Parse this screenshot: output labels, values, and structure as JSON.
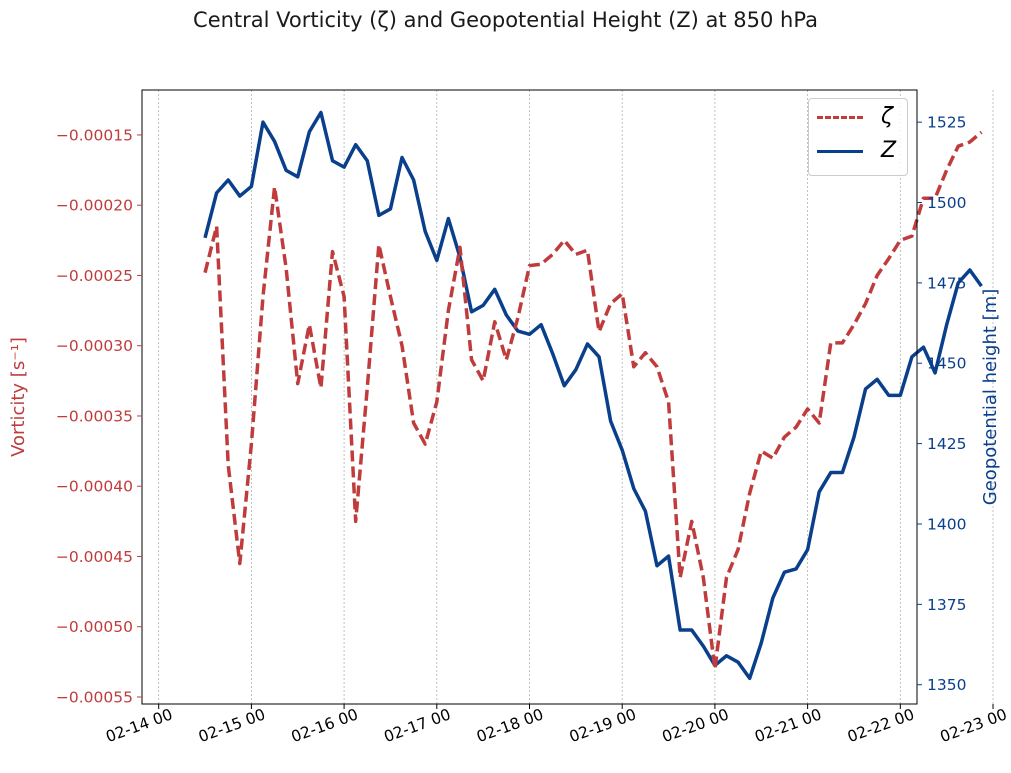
{
  "chart_data": {
    "type": "line",
    "title": "Central Vorticity (ζ) and Geopotential Height (Z) at 850 hPa",
    "ylabel_left": "Vorticity [s⁻¹]",
    "ylabel_right": "Geopotential height [m]",
    "left_axis_color": "#c03c3c",
    "right_axis_color": "#0a3f8c",
    "x_tick_labels": [
      "02-14 00",
      "02-15 00",
      "02-16 00",
      "02-17 00",
      "02-18 00",
      "02-19 00",
      "02-20 00",
      "02-21 00",
      "02-22 00",
      "02-23 00"
    ],
    "x_range_days": [
      -0.18,
      8.18
    ],
    "ylim_left": [
      -0.000555,
      -0.000118
    ],
    "ylim_right": [
      1344,
      1535
    ],
    "left_ticks": [
      -0.00015,
      -0.0002,
      -0.00025,
      -0.0003,
      -0.00035,
      -0.0004,
      -0.00045,
      -0.0005,
      -0.00055
    ],
    "left_tick_labels": [
      "−0.00015",
      "−0.00020",
      "−0.00025",
      "−0.00030",
      "−0.00035",
      "−0.00040",
      "−0.00045",
      "−0.00050",
      "−0.00055"
    ],
    "right_ticks": [
      1350,
      1375,
      1400,
      1425,
      1450,
      1475,
      1500,
      1525
    ],
    "right_tick_labels": [
      "1350",
      "1375",
      "1400",
      "1425",
      "1450",
      "1475",
      "1500",
      "1525"
    ],
    "grid_x": true,
    "legend": {
      "position": "top-right",
      "entries": [
        {
          "label": "ζ",
          "color": "#c03c3c",
          "style": "dashed"
        },
        {
          "label": "Z",
          "color": "#0a3f8c",
          "style": "solid"
        }
      ]
    },
    "series": [
      {
        "name": "ζ",
        "axis": "left",
        "color": "#c03c3c",
        "dash": true,
        "x": [
          "02-14 12:00",
          "02-14 15:00",
          "02-14 18:00",
          "02-14 21:00",
          "02-15 00:00",
          "02-15 03:00",
          "02-15 06:00",
          "02-15 09:00",
          "02-15 12:00",
          "02-15 15:00",
          "02-15 18:00",
          "02-15 21:00",
          "02-16 00:00",
          "02-16 03:00",
          "02-16 06:00",
          "02-16 09:00",
          "02-16 12:00",
          "02-16 15:00",
          "02-16 18:00",
          "02-16 21:00",
          "02-17 00:00",
          "02-17 03:00",
          "02-17 06:00",
          "02-17 09:00",
          "02-17 12:00",
          "02-17 15:00",
          "02-17 18:00",
          "02-17 21:00",
          "02-18 00:00",
          "02-18 03:00",
          "02-18 06:00",
          "02-18 09:00",
          "02-18 12:00",
          "02-18 15:00",
          "02-18 18:00",
          "02-18 21:00",
          "02-19 00:00",
          "02-19 03:00",
          "02-19 06:00",
          "02-19 09:00",
          "02-19 12:00",
          "02-19 15:00",
          "02-19 18:00",
          "02-19 21:00",
          "02-20 00:00",
          "02-20 03:00",
          "02-20 06:00",
          "02-20 09:00",
          "02-20 12:00",
          "02-20 15:00",
          "02-20 18:00",
          "02-20 21:00",
          "02-21 00:00",
          "02-21 03:00",
          "02-21 06:00",
          "02-21 09:00",
          "02-21 12:00",
          "02-21 15:00",
          "02-21 18:00",
          "02-21 21:00",
          "02-22 00:00",
          "02-22 03:00",
          "02-22 06:00",
          "02-22 09:00",
          "02-22 12:00",
          "02-22 15:00",
          "02-22 18:00",
          "02-22 21:00"
        ],
        "values": [
          -0.000248,
          -0.000215,
          -0.000385,
          -0.000455,
          -0.00037,
          -0.000265,
          -0.000187,
          -0.000245,
          -0.000327,
          -0.000285,
          -0.00033,
          -0.000233,
          -0.000265,
          -0.000425,
          -0.00033,
          -0.000228,
          -0.000265,
          -0.0003,
          -0.000355,
          -0.00037,
          -0.00034,
          -0.000275,
          -0.00023,
          -0.00031,
          -0.000325,
          -0.000283,
          -0.00031,
          -0.00028,
          -0.000243,
          -0.000242,
          -0.000235,
          -0.000225,
          -0.000235,
          -0.000232,
          -0.00029,
          -0.00027,
          -0.000263,
          -0.000315,
          -0.000305,
          -0.000315,
          -0.00034,
          -0.000465,
          -0.000425,
          -0.000465,
          -0.00053,
          -0.000465,
          -0.000445,
          -0.000405,
          -0.000375,
          -0.00038,
          -0.000365,
          -0.000358,
          -0.000345,
          -0.000355,
          -0.000298,
          -0.000298,
          -0.000285,
          -0.00027,
          -0.00025,
          -0.000238,
          -0.000225,
          -0.000222,
          -0.000195,
          -0.000195,
          -0.000175,
          -0.000158,
          -0.000155,
          -0.000148
        ]
      },
      {
        "name": "Z",
        "axis": "right",
        "color": "#0a3f8c",
        "dash": false,
        "x": [
          "02-14 12:00",
          "02-14 15:00",
          "02-14 18:00",
          "02-14 21:00",
          "02-15 00:00",
          "02-15 03:00",
          "02-15 06:00",
          "02-15 09:00",
          "02-15 12:00",
          "02-15 15:00",
          "02-15 18:00",
          "02-15 21:00",
          "02-16 00:00",
          "02-16 03:00",
          "02-16 06:00",
          "02-16 09:00",
          "02-16 12:00",
          "02-16 15:00",
          "02-16 18:00",
          "02-16 21:00",
          "02-17 00:00",
          "02-17 03:00",
          "02-17 06:00",
          "02-17 09:00",
          "02-17 12:00",
          "02-17 15:00",
          "02-17 18:00",
          "02-17 21:00",
          "02-18 00:00",
          "02-18 03:00",
          "02-18 06:00",
          "02-18 09:00",
          "02-18 12:00",
          "02-18 15:00",
          "02-18 18:00",
          "02-18 21:00",
          "02-19 00:00",
          "02-19 03:00",
          "02-19 06:00",
          "02-19 09:00",
          "02-19 12:00",
          "02-19 15:00",
          "02-19 18:00",
          "02-19 21:00",
          "02-20 00:00",
          "02-20 03:00",
          "02-20 06:00",
          "02-20 09:00",
          "02-20 12:00",
          "02-20 15:00",
          "02-20 18:00",
          "02-20 21:00",
          "02-21 00:00",
          "02-21 03:00",
          "02-21 06:00",
          "02-21 09:00",
          "02-21 12:00",
          "02-21 15:00",
          "02-21 18:00",
          "02-21 21:00",
          "02-22 00:00",
          "02-22 03:00",
          "02-22 06:00",
          "02-22 09:00",
          "02-22 12:00",
          "02-22 15:00",
          "02-22 18:00",
          "02-22 21:00"
        ],
        "values": [
          1489,
          1503,
          1507,
          1502,
          1505,
          1525,
          1519,
          1510,
          1508,
          1522,
          1528,
          1513,
          1511,
          1518,
          1513,
          1496,
          1498,
          1514,
          1507,
          1491,
          1482,
          1495,
          1483,
          1466,
          1468,
          1473,
          1465,
          1460,
          1459,
          1462,
          1453,
          1443,
          1448,
          1456,
          1452,
          1432,
          1423,
          1411,
          1404,
          1387,
          1390,
          1367,
          1367,
          1362,
          1356,
          1359,
          1357,
          1352,
          1363,
          1377,
          1385,
          1386,
          1392,
          1410,
          1416,
          1416,
          1427,
          1442,
          1445,
          1440,
          1440,
          1452,
          1455,
          1447,
          1462,
          1475,
          1479,
          1474
        ]
      }
    ]
  }
}
